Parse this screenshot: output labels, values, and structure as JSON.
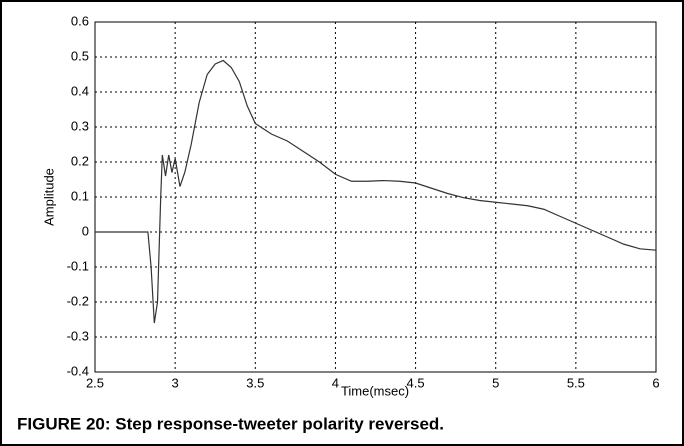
{
  "chart_data": {
    "type": "line",
    "title": "FIGURE 20: Step response-tweeter polarity reversed.",
    "xlabel": "Time(msec)",
    "ylabel": "Amplitude",
    "x": [
      2.5,
      2.8,
      2.83,
      2.85,
      2.87,
      2.89,
      2.91,
      2.92,
      2.94,
      2.96,
      2.98,
      3.0,
      3.03,
      3.06,
      3.1,
      3.15,
      3.2,
      3.25,
      3.3,
      3.35,
      3.4,
      3.45,
      3.5,
      3.6,
      3.7,
      3.8,
      3.9,
      4.0,
      4.1,
      4.2,
      4.3,
      4.4,
      4.5,
      4.6,
      4.7,
      4.8,
      4.9,
      5.0,
      5.1,
      5.2,
      5.3,
      5.4,
      5.5,
      5.6,
      5.7,
      5.8,
      5.9,
      6.0
    ],
    "series": [
      {
        "color": "#333333",
        "values": [
          0,
          0,
          0,
          -0.1,
          -0.26,
          -0.2,
          0.1,
          0.22,
          0.16,
          0.22,
          0.17,
          0.21,
          0.13,
          0.17,
          0.25,
          0.37,
          0.45,
          0.48,
          0.49,
          0.47,
          0.43,
          0.36,
          0.31,
          0.28,
          0.26,
          0.23,
          0.2,
          0.165,
          0.145,
          0.145,
          0.147,
          0.145,
          0.14,
          0.125,
          0.11,
          0.098,
          0.09,
          0.085,
          0.08,
          0.075,
          0.065,
          0.045,
          0.025,
          0.005,
          -0.015,
          -0.035,
          -0.048,
          -0.052
        ]
      }
    ],
    "xlim": [
      2.5,
      6
    ],
    "xticks": [
      2.5,
      3,
      3.5,
      4,
      4.5,
      5,
      5.5,
      6
    ],
    "ylim": [
      -0.4,
      0.6
    ],
    "yticks": [
      -0.4,
      -0.3,
      -0.2,
      -0.1,
      0,
      0.1,
      0.2,
      0.3,
      0.4,
      0.5,
      0.6
    ],
    "grid": true
  }
}
